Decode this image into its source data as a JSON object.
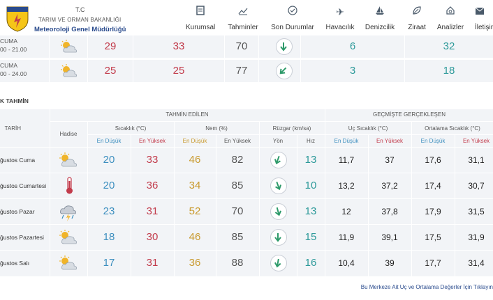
{
  "header": {
    "tc": "T.C",
    "ministry": "TARIM VE ORMAN BAKANLIĞI",
    "org": "Meteoroloji Genel Müdürlüğü",
    "logo_text": "METEOROLOJİ",
    "nav": [
      {
        "label": "Kurumsal",
        "icon": "document-icon"
      },
      {
        "label": "Tahminler",
        "icon": "chart-icon"
      },
      {
        "label": "Son Durumlar",
        "icon": "check-circle-icon"
      },
      {
        "label": "Havacılık",
        "icon": "plane-icon"
      },
      {
        "label": "Denizcilik",
        "icon": "sailboat-icon"
      },
      {
        "label": "Ziraat",
        "icon": "leaf-icon"
      },
      {
        "label": "Analizler",
        "icon": "analysis-icon"
      },
      {
        "label": "İletişim",
        "icon": "envelope-icon"
      }
    ]
  },
  "hourly": [
    {
      "label1": "CUMA",
      "label2": "00 - 21.00",
      "icon": "partly-cloudy-icon",
      "t1": "29",
      "t2": "33",
      "humidity": "70",
      "wind": "6",
      "v2": "32"
    },
    {
      "label1": "CUMA",
      "label2": "00 - 24.00",
      "icon": "partly-cloudy-icon",
      "t1": "25",
      "t2": "25",
      "humidity": "77",
      "wind": "3",
      "v2": "18"
    }
  ],
  "section_title": "K TAHMİN",
  "table": {
    "tahmin_edilen": "TAHMİN EDİLEN",
    "gecmiste": "GEÇMİŞTE GERÇEKLEŞEN",
    "tarih": "TARİH",
    "hadise": "Hadise",
    "sicaklik": "Sıcaklık (°C)",
    "nem": "Nem (%)",
    "ruzgar": "Rüzgar (km/sa)",
    "uc_sicaklik": "Uç Sıcaklık (°C)",
    "ort_sicaklik": "Ortalama Sıcaklık (°C)",
    "en_dusuk": "En Düşük",
    "en_yuksek": "En Yüksek",
    "yon": "Yön",
    "hiz": "Hız",
    "rows": [
      {
        "date": "ğustos Cuma",
        "icon": "partly-cloudy-icon",
        "tmin": "20",
        "tmax": "33",
        "hmin": "46",
        "hmax": "82",
        "wind": "13",
        "umin": "11,7",
        "umax": "37",
        "omin": "17,6",
        "omax": "31,1"
      },
      {
        "date": "ğustos Cumartesi",
        "icon": "thermometer-icon",
        "tmin": "20",
        "tmax": "36",
        "hmin": "34",
        "hmax": "85",
        "wind": "10",
        "umin": "13,2",
        "umax": "37,2",
        "omin": "17,4",
        "omax": "30,7"
      },
      {
        "date": "ğustos Pazar",
        "icon": "thunderstorm-icon",
        "tmin": "23",
        "tmax": "31",
        "hmin": "52",
        "hmax": "70",
        "wind": "13",
        "umin": "12",
        "umax": "37,8",
        "omin": "17,9",
        "omax": "31,5"
      },
      {
        "date": "ğustos Pazartesi",
        "icon": "partly-cloudy-icon",
        "tmin": "18",
        "tmax": "30",
        "hmin": "46",
        "hmax": "85",
        "wind": "15",
        "umin": "11,9",
        "umax": "39,1",
        "omin": "17,5",
        "omax": "31,9"
      },
      {
        "date": "ğustos Salı",
        "icon": "partly-cloudy-icon",
        "tmin": "17",
        "tmax": "31",
        "hmin": "36",
        "hmax": "88",
        "wind": "16",
        "umin": "10,4",
        "umax": "39",
        "omin": "17,7",
        "omax": "31,4"
      }
    ]
  },
  "footer_link": "Bu Merkeze Ait Uç ve Ortalama Değerler İçin Tıklayın",
  "colors": {
    "accent_blue": "#3d8fbf",
    "red": "#c23b4b",
    "orange": "#c99a2e",
    "teal": "#2e9a9a",
    "wind_arrow": "#2e9a6a"
  }
}
